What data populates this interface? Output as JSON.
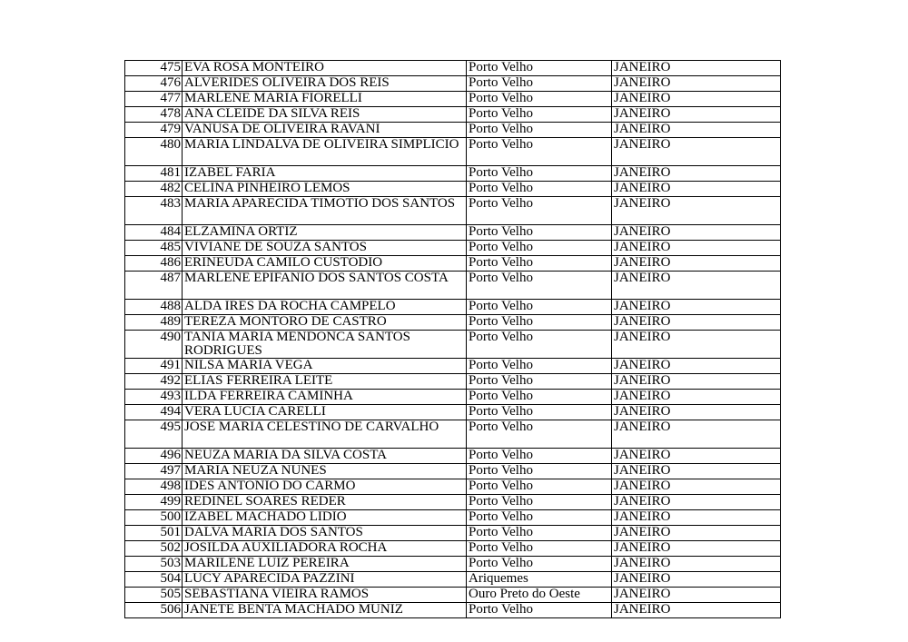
{
  "rows": [
    {
      "num": "475",
      "name": "EVA ROSA MONTEIRO",
      "city": "Porto Velho",
      "month": "JANEIRO"
    },
    {
      "num": "476",
      "name": "ALVERIDES OLIVEIRA DOS REIS",
      "city": "Porto Velho",
      "month": "JANEIRO"
    },
    {
      "num": "477",
      "name": "MARLENE MARIA FIORELLI",
      "city": "Porto Velho",
      "month": "JANEIRO"
    },
    {
      "num": "478",
      "name": "ANA CLEIDE DA SILVA REIS",
      "city": "Porto Velho",
      "month": "JANEIRO"
    },
    {
      "num": "479",
      "name": "VANUSA DE OLIVEIRA RAVANI",
      "city": "Porto Velho",
      "month": "JANEIRO"
    },
    {
      "num": "480",
      "name": "MARIA LINDALVA DE OLIVEIRA SIMPLICIO",
      "city": "Porto Velho",
      "month": "JANEIRO"
    },
    {
      "num": "481",
      "name": "IZABEL FARIA",
      "city": "Porto Velho",
      "month": "JANEIRO"
    },
    {
      "num": "482",
      "name": "CELINA PINHEIRO LEMOS",
      "city": "Porto Velho",
      "month": "JANEIRO"
    },
    {
      "num": "483",
      "name": "MARIA APARECIDA TIMOTIO DOS SANTOS",
      "city": "Porto Velho",
      "month": "JANEIRO"
    },
    {
      "num": "484",
      "name": "ELZAMINA ORTIZ",
      "city": "Porto Velho",
      "month": "JANEIRO"
    },
    {
      "num": "485",
      "name": "VIVIANE DE SOUZA SANTOS",
      "city": "Porto Velho",
      "month": "JANEIRO"
    },
    {
      "num": "486",
      "name": "ERINEUDA CAMILO CUSTODIO",
      "city": "Porto Velho",
      "month": "JANEIRO"
    },
    {
      "num": "487",
      "name": "MARLENE EPIFANIO DOS SANTOS COSTA",
      "city": "Porto Velho",
      "month": "JANEIRO"
    },
    {
      "num": "488",
      "name": "ALDA IRES DA ROCHA CAMPELO",
      "city": "Porto Velho",
      "month": "JANEIRO"
    },
    {
      "num": "489",
      "name": "TEREZA MONTORO DE CASTRO",
      "city": "Porto Velho",
      "month": "JANEIRO"
    },
    {
      "num": "490",
      "name": "TANIA MARIA MENDONCA SANTOS RODRIGUES",
      "city": "Porto Velho",
      "month": "JANEIRO"
    },
    {
      "num": "491",
      "name": "NILSA MARIA VEGA",
      "city": "Porto Velho",
      "month": "JANEIRO"
    },
    {
      "num": "492",
      "name": "ELIAS FERREIRA LEITE",
      "city": "Porto Velho",
      "month": "JANEIRO"
    },
    {
      "num": "493",
      "name": "ILDA FERREIRA CAMINHA",
      "city": "Porto Velho",
      "month": "JANEIRO"
    },
    {
      "num": "494",
      "name": "VERA LUCIA CARELLI",
      "city": "Porto Velho",
      "month": "JANEIRO"
    },
    {
      "num": "495",
      "name": "JOSE MARIA CELESTINO DE CARVALHO",
      "city": "Porto Velho",
      "month": "JANEIRO"
    },
    {
      "num": "496",
      "name": "NEUZA MARIA DA SILVA COSTA",
      "city": "Porto Velho",
      "month": "JANEIRO"
    },
    {
      "num": "497",
      "name": "MARIA NEUZA NUNES",
      "city": "Porto Velho",
      "month": "JANEIRO"
    },
    {
      "num": "498",
      "name": "IDES ANTONIO DO CARMO",
      "city": "Porto Velho",
      "month": "JANEIRO"
    },
    {
      "num": "499",
      "name": "REDINEL SOARES REDER",
      "city": "Porto Velho",
      "month": "JANEIRO"
    },
    {
      "num": "500",
      "name": "IZABEL MACHADO LIDIO",
      "city": "Porto Velho",
      "month": "JANEIRO"
    },
    {
      "num": "501",
      "name": "DALVA MARIA DOS SANTOS",
      "city": "Porto Velho",
      "month": "JANEIRO"
    },
    {
      "num": "502",
      "name": "JOSILDA AUXILIADORA ROCHA",
      "city": "Porto Velho",
      "month": "JANEIRO"
    },
    {
      "num": "503",
      "name": "MARILENE LUIZ PEREIRA",
      "city": "Porto Velho",
      "month": "JANEIRO"
    },
    {
      "num": "504",
      "name": "LUCY APARECIDA PAZZINI",
      "city": "Ariquemes",
      "month": "JANEIRO"
    },
    {
      "num": "505",
      "name": "SEBASTIANA VIEIRA RAMOS",
      "city": "Ouro Preto do Oeste",
      "month": "JANEIRO"
    },
    {
      "num": "506",
      "name": "JANETE BENTA MACHADO MUNIZ",
      "city": "Porto Velho",
      "month": "JANEIRO"
    }
  ]
}
